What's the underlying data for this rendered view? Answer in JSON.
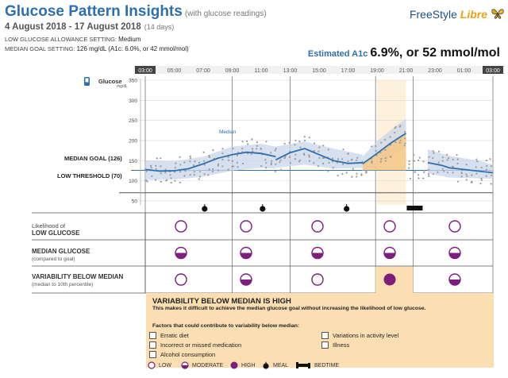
{
  "header": {
    "title": "Glucose Pattern Insights",
    "subtitle": "(with glucose readings)",
    "date_range": "4 August 2018 - 17 August 2018",
    "days": "(14 days)",
    "low_allowance_label": "LOW GLUCOSE ALLOWANCE SETTING:",
    "low_allowance_value": "Medium",
    "median_goal_label": "MEDIAN GOAL SETTING:",
    "median_goal_value": "126 mg/dL (A1c: 6.0%, or 42 mmol/mol)",
    "logo_main": "FreeStyle",
    "logo_accent": "Libre",
    "a1c_label": "Estimated A1c",
    "a1c_value": "6.9%, or 52 mmol/mol"
  },
  "chart_data": {
    "type": "line",
    "title": "Glucose",
    "ylabel": "mg/dL",
    "ylim": [
      40,
      350
    ],
    "yticks": [
      350,
      300,
      250,
      200,
      150,
      100,
      50
    ],
    "x_tick_labels": [
      "03:00",
      "05:00",
      "07:00",
      "09:00",
      "11:00",
      "13:00",
      "15:00",
      "17:00",
      "19:00",
      "21:00",
      "23:00",
      "01:00",
      "03:00"
    ],
    "median_goal": 126,
    "median_goal_label": "MEDIAN GOAL (126)",
    "low_threshold": 70,
    "low_threshold_label": "LOW THRESHOLD (70)",
    "median_label": "Median",
    "series": [
      {
        "name": "Median",
        "segment": 1,
        "x": [
          3,
          4,
          5,
          6,
          7,
          8,
          9,
          10,
          11,
          12
        ],
        "y": [
          128,
          124,
          125,
          130,
          142,
          156,
          165,
          171,
          168,
          160
        ]
      },
      {
        "name": "Median",
        "segment": 2,
        "x": [
          12,
          13,
          14,
          15,
          16,
          17,
          18
        ],
        "y": [
          152,
          170,
          180,
          165,
          150,
          143,
          145
        ]
      },
      {
        "name": "Median",
        "segment": 3,
        "x": [
          18,
          19,
          20,
          21
        ],
        "y": [
          142,
          168,
          195,
          218
        ]
      },
      {
        "name": "Median",
        "segment": 4,
        "x": [
          22.5,
          23.5,
          24,
          25,
          26,
          27
        ],
        "y": [
          145,
          138,
          132,
          128,
          124,
          120
        ]
      }
    ],
    "band_low": [
      {
        "x": [
          3,
          5,
          7,
          9,
          11,
          12
        ],
        "y": [
          102,
          103,
          110,
          125,
          132,
          130
        ]
      },
      {
        "x": [
          12,
          14,
          16,
          18
        ],
        "y": [
          132,
          140,
          130,
          132
        ]
      },
      {
        "x": [
          18,
          19,
          20,
          21
        ],
        "y": [
          125,
          138,
          160,
          182
        ]
      },
      {
        "x": [
          22.5,
          24,
          26,
          27
        ],
        "y": [
          118,
          108,
          106,
          105
        ]
      }
    ],
    "band_high": [
      {
        "x": [
          3,
          5,
          7,
          9,
          11,
          12
        ],
        "y": [
          150,
          148,
          160,
          185,
          192,
          185
        ]
      },
      {
        "x": [
          12,
          14,
          16,
          18
        ],
        "y": [
          185,
          198,
          180,
          165
        ]
      },
      {
        "x": [
          18,
          19,
          20,
          21
        ],
        "y": [
          160,
          198,
          228,
          255
        ]
      },
      {
        "x": [
          22.5,
          24,
          26,
          27
        ],
        "y": [
          178,
          162,
          150,
          140
        ]
      }
    ],
    "meal_markers_x": [
      7.1,
      11.1,
      16.9
    ],
    "bedtime_marker_x": 21.6
  },
  "grid": {
    "rows": [
      {
        "label": "Likelihood of",
        "label2": "LOW GLUCOSE",
        "sub": ""
      },
      {
        "label": "MEDIAN GLUCOSE",
        "label2": "",
        "sub": "(compared to goal)"
      },
      {
        "label": "VARIABILITY BELOW MEDIAN",
        "label2": "",
        "sub": "(median to 10th percentile)"
      }
    ],
    "cells": [
      [
        "low",
        "low",
        "low",
        "low",
        "low"
      ],
      [
        "moderate",
        "moderate",
        "moderate",
        "moderate",
        "moderate"
      ],
      [
        "low",
        "moderate",
        "low",
        "high",
        "moderate"
      ]
    ],
    "highlight_color": "#fbdfb3",
    "low_color": "#7b1f7b"
  },
  "alert": {
    "title": "VARIABILITY BELOW MEDIAN IS HIGH",
    "description": "This makes it difficult to achieve the median glucose goal without increasing the likelihood of low glucose.",
    "factors_heading": "Factors that could contribute to variability below median:",
    "factors": [
      "Erratic diet",
      "Incorrect or missed medication",
      "Alcohol consumption",
      "Variations in activity level",
      "Illness"
    ]
  },
  "legend": {
    "low": "LOW",
    "moderate": "MODERATE",
    "high": "HIGH",
    "meal": "MEAL",
    "bedtime": "BEDTIME"
  }
}
